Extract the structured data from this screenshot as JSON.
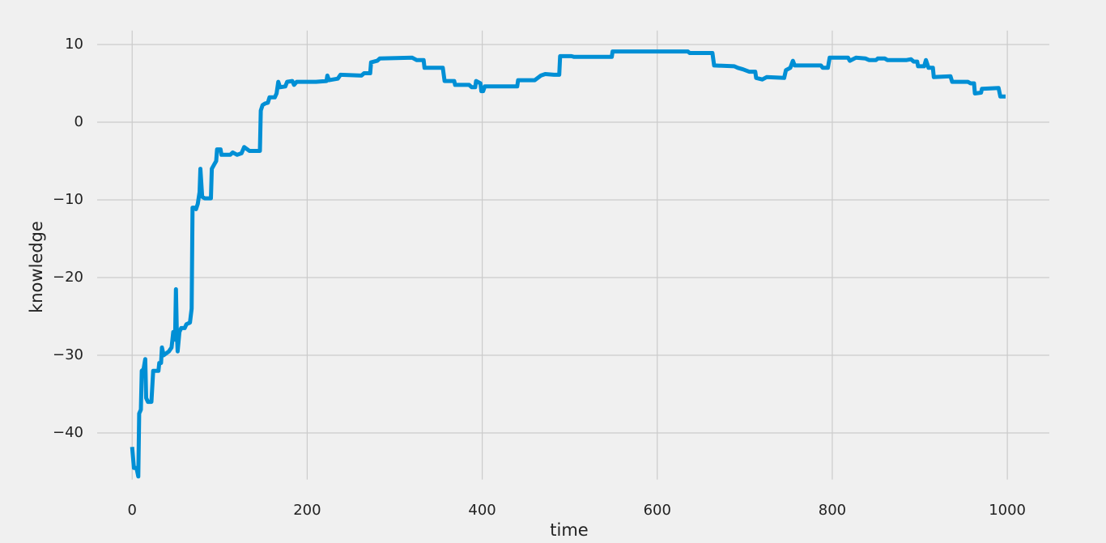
{
  "chart_data": {
    "type": "line",
    "x_label": "time",
    "y_label": "knowledge",
    "color": "#008fd5",
    "grid": true,
    "xlim": [
      -40,
      1048
    ],
    "ylim": [
      -46,
      11.8
    ],
    "xticks": [
      0,
      200,
      400,
      600,
      800,
      1000
    ],
    "yticks": [
      {
        "value": -40,
        "label": "−40"
      },
      {
        "value": -30,
        "label": "−30"
      },
      {
        "value": -20,
        "label": "−20"
      },
      {
        "value": -10,
        "label": "−10"
      },
      0,
      10
    ],
    "x": [
      0,
      2,
      5,
      7,
      8,
      10,
      11,
      13,
      15,
      16,
      18,
      22,
      24,
      30,
      31,
      33,
      34,
      36,
      42,
      45,
      47,
      49,
      50,
      51,
      52,
      54,
      56,
      60,
      62,
      66,
      68,
      69,
      71,
      73,
      75,
      77,
      78,
      80,
      83,
      90,
      91,
      94,
      96,
      97,
      101,
      102,
      112,
      115,
      120,
      125,
      128,
      134,
      146,
      147,
      149,
      152,
      155,
      157,
      163,
      165,
      167,
      169,
      175,
      177,
      183,
      185,
      188,
      210,
      222,
      223,
      225,
      235,
      238,
      262,
      265,
      272,
      273,
      280,
      283,
      320,
      325,
      333,
      334,
      355,
      357,
      368,
      369,
      385,
      388,
      392,
      393,
      398,
      399,
      401,
      403,
      440,
      441,
      460,
      467,
      472,
      482,
      488,
      489,
      502,
      505,
      548,
      549,
      635,
      637,
      663,
      665,
      688,
      692,
      698,
      705,
      712,
      713,
      720,
      725,
      745,
      747,
      752,
      755,
      757,
      787,
      789,
      795,
      797,
      818,
      820,
      827,
      838,
      842,
      850,
      852,
      860,
      863,
      885,
      890,
      893,
      897,
      898,
      905,
      907,
      910,
      915,
      916,
      935,
      937,
      955,
      958,
      962,
      963,
      970,
      971,
      990,
      992,
      998
    ],
    "values": [
      -41.8,
      -44.5,
      -44.5,
      -45.6,
      -37.5,
      -37,
      -32,
      -31.8,
      -30.5,
      -35.5,
      -36,
      -36,
      -32,
      -32,
      -31,
      -31,
      -29,
      -30,
      -29.5,
      -29,
      -27,
      -28,
      -21.5,
      -27,
      -29.5,
      -27,
      -26.5,
      -26.5,
      -26,
      -25.8,
      -24,
      -11,
      -11,
      -11.2,
      -10.5,
      -9,
      -6,
      -9.6,
      -9.8,
      -9.8,
      -6,
      -5.4,
      -5,
      -3.5,
      -3.5,
      -4.2,
      -4.2,
      -3.9,
      -4.2,
      -4,
      -3.2,
      -3.7,
      -3.7,
      1.5,
      2.2,
      2.4,
      2.5,
      3.2,
      3.2,
      3.7,
      5.2,
      4.5,
      4.6,
      5.2,
      5.3,
      4.8,
      5.2,
      5.2,
      5.3,
      6,
      5.4,
      5.6,
      6.1,
      6,
      6.3,
      6.3,
      7.7,
      7.9,
      8.2,
      8.3,
      8,
      8,
      7,
      7,
      5.3,
      5.3,
      4.8,
      4.8,
      4.5,
      4.5,
      5.3,
      5,
      4,
      4,
      4.6,
      4.6,
      5.4,
      5.4,
      6,
      6.2,
      6.1,
      6.1,
      8.5,
      8.5,
      8.4,
      8.4,
      9.1,
      9.1,
      8.9,
      8.9,
      7.3,
      7.2,
      7,
      6.8,
      6.5,
      6.5,
      5.7,
      5.5,
      5.8,
      5.7,
      6.7,
      7,
      7.9,
      7.3,
      7.3,
      7,
      7,
      8.3,
      8.3,
      7.9,
      8.3,
      8.2,
      8,
      8,
      8.2,
      8.2,
      8,
      8,
      8.1,
      7.8,
      7.8,
      7.2,
      7.2,
      8,
      7,
      7,
      5.8,
      5.9,
      5.2,
      5.2,
      5,
      5,
      3.7,
      3.8,
      4.3,
      4.4,
      3.3,
      3.3
    ]
  }
}
